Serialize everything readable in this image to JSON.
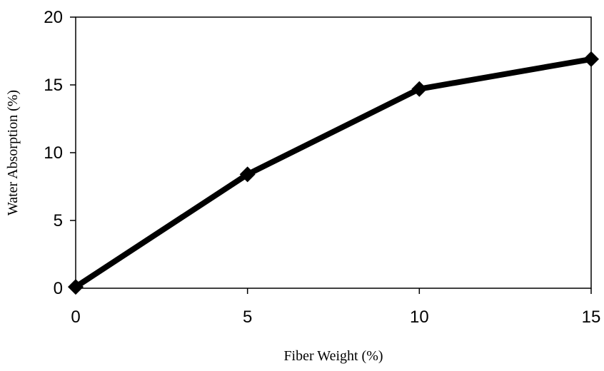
{
  "chart_data": {
    "type": "line",
    "title": "",
    "xlabel": "Fiber Weight (%)",
    "ylabel": "Water Absorption (%)",
    "x": [
      0,
      5,
      10,
      15
    ],
    "series": [
      {
        "values": [
          0.1,
          8.4,
          14.7,
          16.9
        ],
        "marker": "diamond",
        "color": "#000000"
      }
    ],
    "xlim": [
      0,
      15
    ],
    "ylim": [
      0,
      20
    ],
    "xticks": [
      "0",
      "5",
      "10",
      "15"
    ],
    "yticks": [
      "0",
      "5",
      "10",
      "15",
      "20"
    ],
    "grid": false,
    "legend": "none"
  }
}
